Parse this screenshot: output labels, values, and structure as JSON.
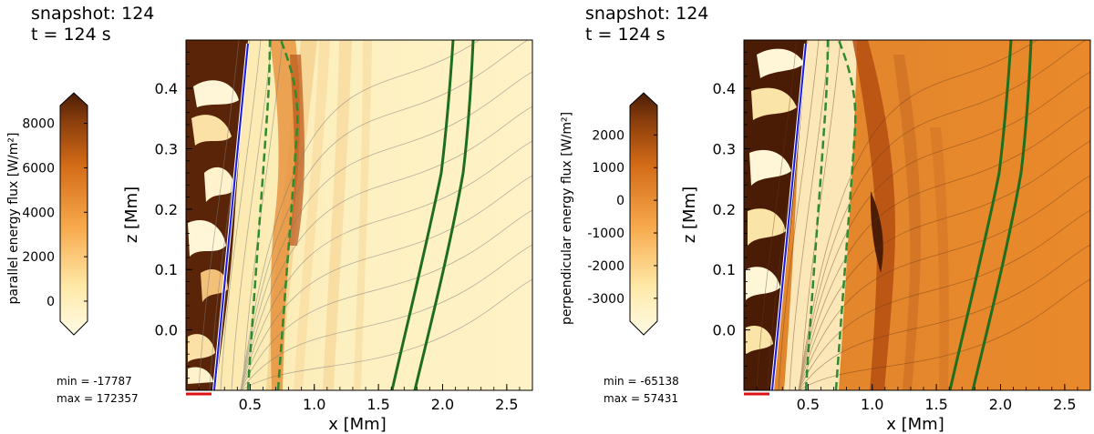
{
  "chart_data": [
    {
      "type": "heatmap",
      "title_line1": "snapshot: 124",
      "title_line2": "t = 124 s",
      "quantity": "parallel",
      "xlabel": "x [Mm]",
      "ylabel": "z [Mm]",
      "xlim": [
        0,
        2.7
      ],
      "ylim": [
        -0.1,
        0.48
      ],
      "xticks": [
        "0.5",
        "1.0",
        "1.5",
        "2.0",
        "2.5"
      ],
      "xtick_values": [
        0.5,
        1.0,
        1.5,
        2.0,
        2.5
      ],
      "yticks": [
        "0.0",
        "0.1",
        "0.2",
        "0.3",
        "0.4"
      ],
      "ytick_values": [
        0.0,
        0.1,
        0.2,
        0.3,
        0.4
      ],
      "colorbar_label": "parallel energy flux [W/m²]",
      "colorbar_range": [
        -900,
        8800
      ],
      "colorbar_ticks": [
        "8000",
        "6000",
        "4000",
        "2000",
        "0"
      ],
      "colorbar_tick_values": [
        8000,
        6000,
        4000,
        2000,
        0
      ],
      "min_text": "min = -17787",
      "max_text": "max = 172357",
      "blue_line": [
        [
          0.22,
          -0.1
        ],
        [
          0.47,
          0.475
        ]
      ],
      "solid_green_x0": [
        1.6,
        1.78
      ],
      "dashed_green_x0": [
        0.48,
        0.73
      ]
    },
    {
      "type": "heatmap",
      "title_line1": "snapshot: 124",
      "title_line2": "t = 124 s",
      "quantity": "perpendicular",
      "xlabel": "x [Mm]",
      "ylabel": "z [Mm]",
      "xlim": [
        0,
        2.7
      ],
      "ylim": [
        -0.1,
        0.48
      ],
      "xticks": [
        "0.5",
        "1.0",
        "1.5",
        "2.0",
        "2.5"
      ],
      "xtick_values": [
        0.5,
        1.0,
        1.5,
        2.0,
        2.5
      ],
      "yticks": [
        "0.0",
        "0.1",
        "0.2",
        "0.3",
        "0.4"
      ],
      "ytick_values": [
        0.0,
        0.1,
        0.2,
        0.3,
        0.4
      ],
      "colorbar_label": "perpendicular energy flux [W/m²]",
      "colorbar_range": [
        -3700,
        2900
      ],
      "colorbar_ticks": [
        "2000",
        "1000",
        "0",
        "-1000",
        "-2000",
        "-3000"
      ],
      "colorbar_tick_values": [
        2000,
        1000,
        0,
        -1000,
        -2000,
        -3000
      ],
      "min_text": "min = -65138",
      "max_text": "max = 57431",
      "blue_line": [
        [
          0.22,
          -0.1
        ],
        [
          0.47,
          0.475
        ]
      ],
      "solid_green_x0": [
        1.6,
        1.78
      ],
      "dashed_green_x0": [
        0.48,
        0.73
      ]
    }
  ]
}
